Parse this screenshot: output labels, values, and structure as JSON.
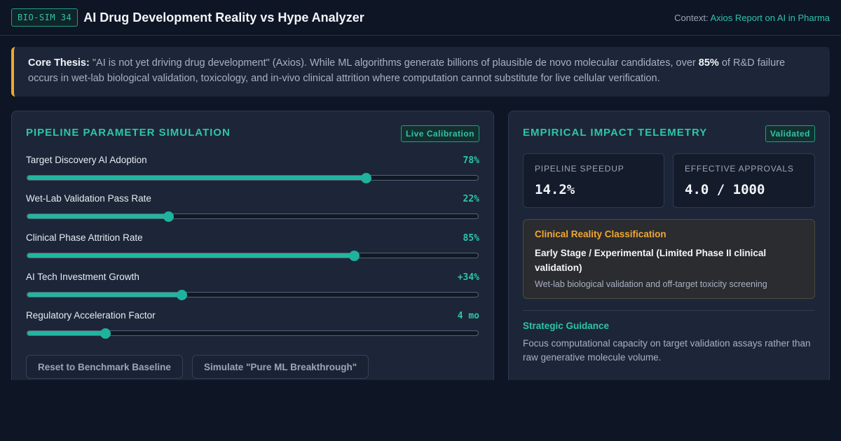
{
  "header": {
    "badge": "BIO-SIM 34",
    "title": "AI Drug Development Reality vs Hype Analyzer",
    "context_label": "Context: ",
    "context_link": "Axios Report on AI in Pharma"
  },
  "thesis": {
    "label": "Core Thesis:",
    "text_before": " \"AI is not yet driving drug development\" (Axios). While ML algorithms generate billions of plausible de novo molecular candidates, over ",
    "highlight": "85%",
    "text_after": " of R&D failure occurs in wet-lab biological validation, toxicology, and in-vivo clinical attrition where computation cannot substitute for live cellular verification."
  },
  "simulation": {
    "title": "Pipeline Parameter Simulation",
    "tag": "Live Calibration",
    "sliders": [
      {
        "label": "Target Discovery AI Adoption",
        "value": "78%",
        "level": 0.752
      },
      {
        "label": "Wet-Lab Validation Pass Rate",
        "value": "22%",
        "level": 0.313
      },
      {
        "label": "Clinical Phase Attrition Rate",
        "value": "85%",
        "level": 0.725
      },
      {
        "label": "AI Tech Investment Growth",
        "value": "+34%",
        "level": 0.343
      },
      {
        "label": "Regulatory Acceleration Factor",
        "value": "4 mo",
        "level": 0.173
      }
    ],
    "reset_label": "Reset to Benchmark Baseline",
    "simulate_label": "Simulate \"Pure ML Breakthrough\""
  },
  "telemetry": {
    "title": "Empirical Impact Telemetry",
    "tag": "Validated",
    "metrics": [
      {
        "label": "Pipeline Speedup",
        "value": "14.2%"
      },
      {
        "label": "Effective Approvals",
        "value": "4.0 / 1000"
      }
    ],
    "classification": {
      "title": "Clinical Reality Classification",
      "headline": "Early Stage / Experimental (Limited Phase II clinical validation)",
      "description": "Wet-lab biological validation and off-target toxicity screening"
    },
    "guidance": {
      "title": "Strategic Guidance",
      "text": "Focus computational capacity on target validation assays rather than raw generative molecule volume."
    }
  },
  "colors": {
    "accent": "#2ec4ac",
    "warning": "#f0a830",
    "background": "#0e1525",
    "panel": "#1c2638"
  }
}
